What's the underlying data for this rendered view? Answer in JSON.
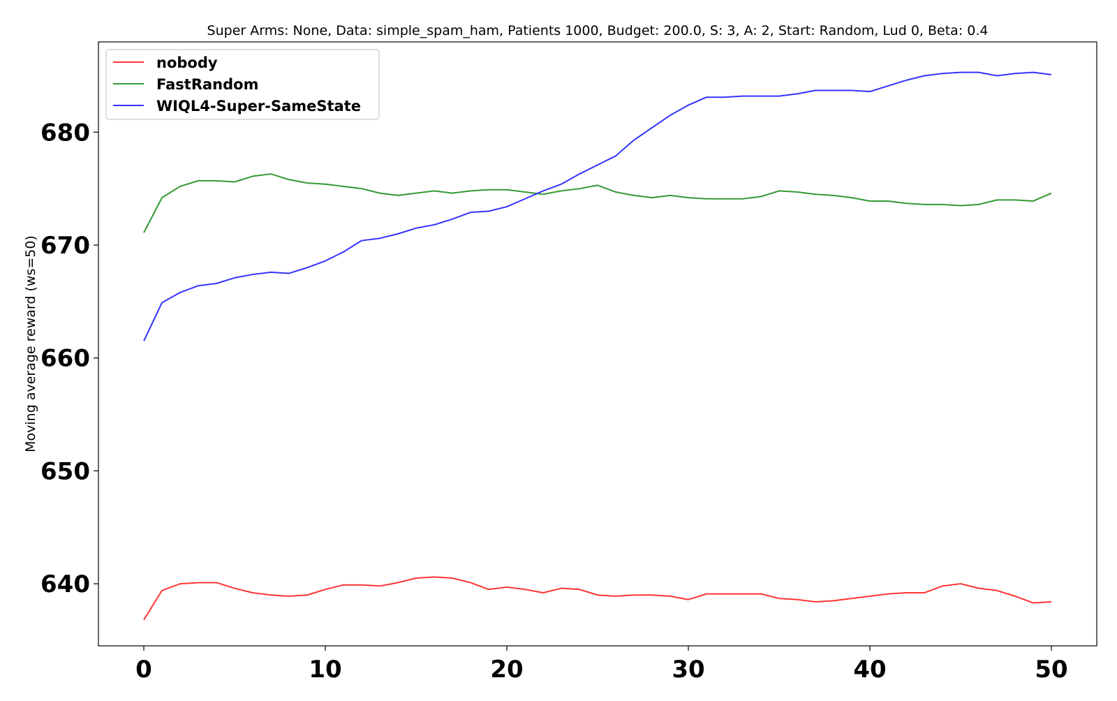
{
  "chart_data": {
    "type": "line",
    "title": "Super Arms: None, Data: simple_spam_ham, Patients 1000, Budget: 200.0, S: 3, A: 2, Start: Random, Lud 0, Beta: 0.4",
    "xlabel": "",
    "ylabel": "Moving average reward (ws=50)",
    "xlim": [
      -2.5,
      52.5
    ],
    "ylim": [
      634.5,
      688
    ],
    "xticks": [
      0,
      10,
      20,
      30,
      40,
      50
    ],
    "yticks": [
      640,
      650,
      660,
      670,
      680
    ],
    "grid": false,
    "legend_position": "top-left",
    "x": [
      0,
      1,
      2,
      3,
      4,
      5,
      6,
      7,
      8,
      9,
      10,
      11,
      12,
      13,
      14,
      15,
      16,
      17,
      18,
      19,
      20,
      21,
      22,
      23,
      24,
      25,
      26,
      27,
      28,
      29,
      30,
      31,
      32,
      33,
      34,
      35,
      36,
      37,
      38,
      39,
      40,
      41,
      42,
      43,
      44,
      45,
      46,
      47,
      48,
      49,
      50
    ],
    "series": [
      {
        "name": "nobody",
        "color": "#ff3333",
        "values": [
          636.8,
          639.4,
          640.0,
          640.1,
          640.1,
          639.6,
          639.2,
          639.0,
          638.9,
          639.0,
          639.5,
          639.9,
          639.9,
          639.8,
          640.1,
          640.5,
          640.6,
          640.5,
          640.1,
          639.5,
          639.7,
          639.5,
          639.2,
          639.6,
          639.5,
          639.0,
          638.9,
          639.0,
          639.0,
          638.9,
          638.6,
          639.1,
          639.1,
          639.1,
          639.1,
          638.7,
          638.6,
          638.4,
          638.5,
          638.7,
          638.9,
          639.1,
          639.2,
          639.2,
          639.8,
          640.0,
          639.6,
          639.4,
          638.9,
          638.3,
          638.4
        ]
      },
      {
        "name": "FastRandom",
        "color": "#339933",
        "values": [
          671.1,
          674.2,
          675.2,
          675.7,
          675.7,
          675.6,
          676.1,
          676.3,
          675.8,
          675.5,
          675.4,
          675.2,
          675.0,
          674.6,
          674.4,
          674.6,
          674.8,
          674.6,
          674.8,
          674.9,
          674.9,
          674.7,
          674.5,
          674.8,
          675.0,
          675.3,
          674.7,
          674.4,
          674.2,
          674.4,
          674.2,
          674.1,
          674.1,
          674.1,
          674.3,
          674.8,
          674.7,
          674.5,
          674.4,
          674.2,
          673.9,
          673.9,
          673.7,
          673.6,
          673.6,
          673.5,
          673.6,
          674.0,
          674.0,
          673.9,
          674.6
        ]
      },
      {
        "name": "WIQL4-Super-SameState",
        "color": "#3333ff",
        "values": [
          661.5,
          664.9,
          665.8,
          666.4,
          666.6,
          667.1,
          667.4,
          667.6,
          667.5,
          668.0,
          668.6,
          669.4,
          670.4,
          670.6,
          671.0,
          671.5,
          671.8,
          672.3,
          672.9,
          673.0,
          673.4,
          674.1,
          674.8,
          675.4,
          676.3,
          677.1,
          677.9,
          679.3,
          680.4,
          681.5,
          682.4,
          683.1,
          683.1,
          683.2,
          683.2,
          683.2,
          683.4,
          683.7,
          683.7,
          683.7,
          683.6,
          684.1,
          684.6,
          685.0,
          685.2,
          685.3,
          685.3,
          685.0,
          685.2,
          685.3,
          685.1
        ]
      }
    ]
  }
}
